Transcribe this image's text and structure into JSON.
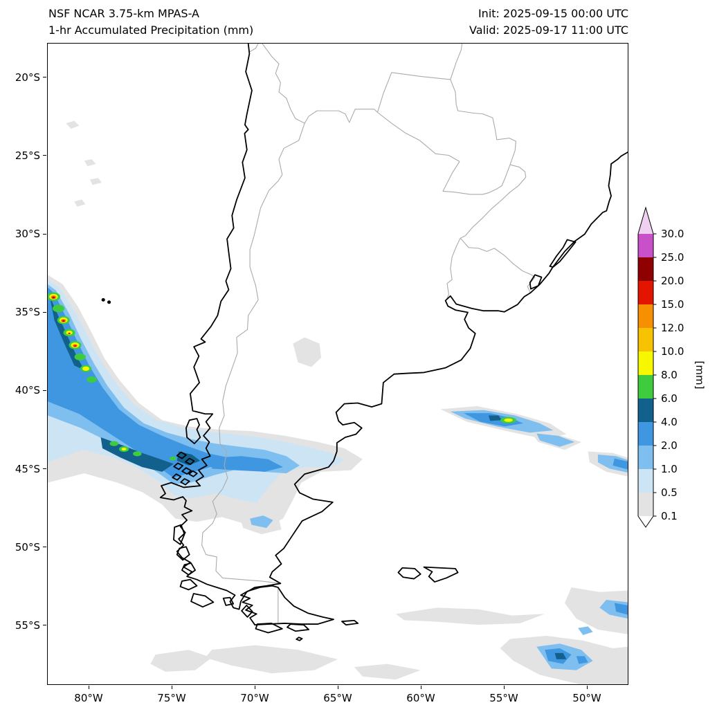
{
  "header": {
    "title_line1": "NSF NCAR 3.75-km MPAS-A",
    "title_line2": "1-hr Accumulated Precipitation (mm)",
    "init_line": "Init: 2025-09-15 00:00 UTC",
    "valid_line": "Valid: 2025-09-17 11:00 UTC"
  },
  "map": {
    "extent": {
      "lon_min": -82.5,
      "lon_max": -47.5,
      "lat_min": -58.8,
      "lat_max": -17.8
    },
    "x_ticks": [
      {
        "label": "80°W",
        "lon": -80
      },
      {
        "label": "75°W",
        "lon": -75
      },
      {
        "label": "70°W",
        "lon": -70
      },
      {
        "label": "65°W",
        "lon": -65
      },
      {
        "label": "60°W",
        "lon": -60
      },
      {
        "label": "55°W",
        "lon": -55
      },
      {
        "label": "50°W",
        "lon": -50
      }
    ],
    "y_ticks": [
      {
        "label": "20°S",
        "lat": -20
      },
      {
        "label": "25°S",
        "lat": -25
      },
      {
        "label": "30°S",
        "lat": -30
      },
      {
        "label": "35°S",
        "lat": -35
      },
      {
        "label": "40°S",
        "lat": -40
      },
      {
        "label": "45°S",
        "lat": -45
      },
      {
        "label": "50°S",
        "lat": -50
      },
      {
        "label": "55°S",
        "lat": -55
      }
    ]
  },
  "colorbar": {
    "unit_label": "[mm]",
    "levels": [
      "0.1",
      "0.5",
      "1.0",
      "2.0",
      "4.0",
      "6.0",
      "8.0",
      "10.0",
      "12.0",
      "15.0",
      "20.0",
      "25.0",
      "30.0"
    ],
    "colors": [
      "#e3e3e3",
      "#cde4f5",
      "#7fbff0",
      "#3e97e0",
      "#11618c",
      "#3ecc3e",
      "#f7f700",
      "#f7c300",
      "#f79000",
      "#e31400",
      "#8f0000",
      "#c850c8"
    ],
    "over_color": "#f0d0f0",
    "under_color": "#ffffff",
    "outline_color": "#000000"
  },
  "chart_data": {
    "type": "map",
    "model": "NSF NCAR 3.75-km MPAS-A",
    "variable": "1-hr Accumulated Precipitation (mm)",
    "init": "2025-09-15 00:00 UTC",
    "valid": "2025-09-17 11:00 UTC",
    "extent": {
      "lon": [
        -82.5,
        -47.5
      ],
      "lat": [
        -58.8,
        -17.8
      ]
    },
    "colorbar_levels_mm": [
      0.1,
      0.5,
      1.0,
      2.0,
      4.0,
      6.0,
      8.0,
      10.0,
      12.0,
      15.0,
      20.0,
      25.0,
      30.0
    ],
    "features": [
      "Line of intense cells (8-20+ mm) with yellow/orange/red cores off the Chilean coast between ~33.5S and 39.5S near 80-82.5W",
      "Broad 1-6 mm frontal precipitation band crossing the south Chilean coast and Patagonia near 42-46S, extending east to ~67W",
      "Elongated 1-8 mm streaks over the South Atlantic near 41-43S between 58W and 50W, with a small 6-10 mm core near 54.7W 41.9S",
      "Blue 1-4 mm patch at the eastern map edge near 44-45S",
      "Scattered 0.1-4 mm showers over the far South Atlantic, 52-59S, strongest near 50-52W below 56S",
      "Light 0.1-0.5 mm areas over central Argentina (~37-38S) and south of the Falkland Islands"
    ]
  }
}
